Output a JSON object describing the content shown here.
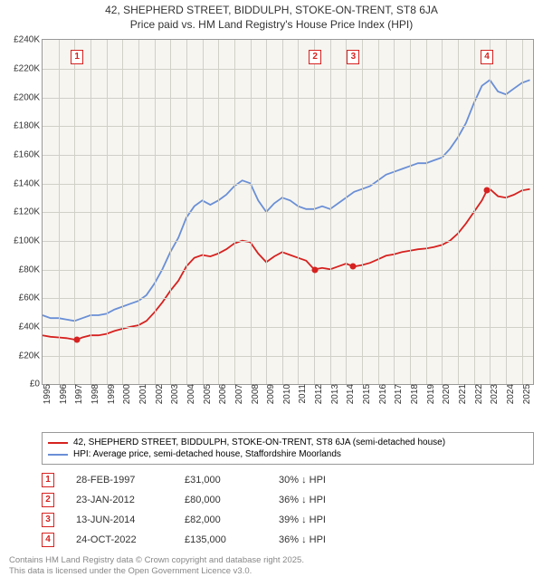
{
  "title_line1": "42, SHEPHERD STREET, BIDDULPH, STOKE-ON-TRENT, ST8 6JA",
  "title_line2": "Price paid vs. HM Land Registry's House Price Index (HPI)",
  "colors": {
    "series_price": "#d62220",
    "series_hpi": "#6a8fd6",
    "grid": "#d0cfc8",
    "plot_bg": "#f6f5f0",
    "axis": "#999999",
    "text": "#333333",
    "foot": "#888888"
  },
  "chart": {
    "type": "line",
    "x_years": [
      1995,
      1996,
      1997,
      1998,
      1999,
      2000,
      2001,
      2002,
      2003,
      2004,
      2005,
      2006,
      2007,
      2008,
      2009,
      2010,
      2011,
      2012,
      2013,
      2014,
      2015,
      2016,
      2017,
      2018,
      2019,
      2020,
      2021,
      2022,
      2023,
      2024,
      2025
    ],
    "y_ticks": [
      0,
      20000,
      40000,
      60000,
      80000,
      100000,
      120000,
      140000,
      160000,
      180000,
      200000,
      220000,
      240000
    ],
    "y_tick_labels": [
      "£0",
      "£20K",
      "£40K",
      "£60K",
      "£80K",
      "£100K",
      "£120K",
      "£140K",
      "£160K",
      "£180K",
      "£200K",
      "£220K",
      "£240K"
    ],
    "ylim": [
      0,
      240000
    ],
    "xlim": [
      1995,
      2025.7
    ],
    "line_width": 1.8,
    "hpi_series": [
      [
        1995,
        48000
      ],
      [
        1995.5,
        46000
      ],
      [
        1996,
        46000
      ],
      [
        1996.5,
        45000
      ],
      [
        1997,
        44000
      ],
      [
        1997.5,
        46000
      ],
      [
        1998,
        48000
      ],
      [
        1998.5,
        48000
      ],
      [
        1999,
        49000
      ],
      [
        1999.5,
        52000
      ],
      [
        2000,
        54000
      ],
      [
        2000.5,
        56000
      ],
      [
        2001,
        58000
      ],
      [
        2001.5,
        62000
      ],
      [
        2002,
        70000
      ],
      [
        2002.5,
        80000
      ],
      [
        2003,
        92000
      ],
      [
        2003.5,
        102000
      ],
      [
        2004,
        116000
      ],
      [
        2004.5,
        124000
      ],
      [
        2005,
        128000
      ],
      [
        2005.5,
        125000
      ],
      [
        2006,
        128000
      ],
      [
        2006.5,
        132000
      ],
      [
        2007,
        138000
      ],
      [
        2007.5,
        142000
      ],
      [
        2008,
        140000
      ],
      [
        2008.5,
        128000
      ],
      [
        2009,
        120000
      ],
      [
        2009.5,
        126000
      ],
      [
        2010,
        130000
      ],
      [
        2010.5,
        128000
      ],
      [
        2011,
        124000
      ],
      [
        2011.5,
        122000
      ],
      [
        2012,
        122000
      ],
      [
        2012.5,
        124000
      ],
      [
        2013,
        122000
      ],
      [
        2013.5,
        126000
      ],
      [
        2014,
        130000
      ],
      [
        2014.5,
        134000
      ],
      [
        2015,
        136000
      ],
      [
        2015.5,
        138000
      ],
      [
        2016,
        142000
      ],
      [
        2016.5,
        146000
      ],
      [
        2017,
        148000
      ],
      [
        2017.5,
        150000
      ],
      [
        2018,
        152000
      ],
      [
        2018.5,
        154000
      ],
      [
        2019,
        154000
      ],
      [
        2019.5,
        156000
      ],
      [
        2020,
        158000
      ],
      [
        2020.5,
        164000
      ],
      [
        2021,
        172000
      ],
      [
        2021.5,
        182000
      ],
      [
        2022,
        196000
      ],
      [
        2022.5,
        208000
      ],
      [
        2023,
        212000
      ],
      [
        2023.5,
        204000
      ],
      [
        2024,
        202000
      ],
      [
        2024.5,
        206000
      ],
      [
        2025,
        210000
      ],
      [
        2025.5,
        212000
      ]
    ],
    "price_series": [
      [
        1995,
        34000
      ],
      [
        1995.5,
        33000
      ],
      [
        1996,
        32500
      ],
      [
        1996.5,
        32000
      ],
      [
        1997,
        31000
      ],
      [
        1997.16,
        31000
      ],
      [
        1997.5,
        32500
      ],
      [
        1998,
        34000
      ],
      [
        1998.5,
        34000
      ],
      [
        1999,
        35000
      ],
      [
        1999.5,
        37000
      ],
      [
        2000,
        38500
      ],
      [
        2000.5,
        40000
      ],
      [
        2001,
        41000
      ],
      [
        2001.5,
        44000
      ],
      [
        2002,
        50000
      ],
      [
        2002.5,
        57000
      ],
      [
        2003,
        65000
      ],
      [
        2003.5,
        72000
      ],
      [
        2004,
        82000
      ],
      [
        2004.5,
        88000
      ],
      [
        2005,
        90000
      ],
      [
        2005.5,
        89000
      ],
      [
        2006,
        91000
      ],
      [
        2006.5,
        94000
      ],
      [
        2007,
        98000
      ],
      [
        2007.5,
        100000
      ],
      [
        2008,
        99000
      ],
      [
        2008.5,
        91000
      ],
      [
        2009,
        85000
      ],
      [
        2009.5,
        89000
      ],
      [
        2010,
        92000
      ],
      [
        2010.5,
        90000
      ],
      [
        2011,
        88000
      ],
      [
        2011.5,
        86000
      ],
      [
        2012,
        80000
      ],
      [
        2012.06,
        80000
      ],
      [
        2012.5,
        81000
      ],
      [
        2013,
        80000
      ],
      [
        2013.5,
        82000
      ],
      [
        2014,
        84000
      ],
      [
        2014.45,
        82000
      ],
      [
        2014.5,
        82000
      ],
      [
        2015,
        83000
      ],
      [
        2015.5,
        84500
      ],
      [
        2016,
        87000
      ],
      [
        2016.5,
        89500
      ],
      [
        2017,
        90500
      ],
      [
        2017.5,
        92000
      ],
      [
        2018,
        93000
      ],
      [
        2018.5,
        94000
      ],
      [
        2019,
        94500
      ],
      [
        2019.5,
        95500
      ],
      [
        2020,
        97000
      ],
      [
        2020.5,
        100000
      ],
      [
        2021,
        105000
      ],
      [
        2021.5,
        112000
      ],
      [
        2022,
        120000
      ],
      [
        2022.5,
        128000
      ],
      [
        2022.81,
        135000
      ],
      [
        2023,
        136000
      ],
      [
        2023.5,
        131000
      ],
      [
        2024,
        130000
      ],
      [
        2024.5,
        132000
      ],
      [
        2025,
        135000
      ],
      [
        2025.5,
        136000
      ]
    ],
    "sale_markers": [
      {
        "n": "1",
        "x": 1997.16,
        "y": 31000
      },
      {
        "n": "2",
        "x": 2012.06,
        "y": 80000
      },
      {
        "n": "3",
        "x": 2014.45,
        "y": 82000
      },
      {
        "n": "4",
        "x": 2022.81,
        "y": 135000
      }
    ],
    "marker_top_y": 228000
  },
  "legend": [
    {
      "color": "#d62220",
      "label": "42, SHEPHERD STREET, BIDDULPH, STOKE-ON-TRENT, ST8 6JA (semi-detached house)"
    },
    {
      "color": "#6a8fd6",
      "label": "HPI: Average price, semi-detached house, Staffordshire Moorlands"
    }
  ],
  "sales_table": [
    {
      "n": "1",
      "date": "28-FEB-1997",
      "price": "£31,000",
      "delta": "30% ↓ HPI"
    },
    {
      "n": "2",
      "date": "23-JAN-2012",
      "price": "£80,000",
      "delta": "36% ↓ HPI"
    },
    {
      "n": "3",
      "date": "13-JUN-2014",
      "price": "£82,000",
      "delta": "39% ↓ HPI"
    },
    {
      "n": "4",
      "date": "24-OCT-2022",
      "price": "£135,000",
      "delta": "36% ↓ HPI"
    }
  ],
  "footer_line1": "Contains HM Land Registry data © Crown copyright and database right 2025.",
  "footer_line2": "This data is licensed under the Open Government Licence v3.0."
}
